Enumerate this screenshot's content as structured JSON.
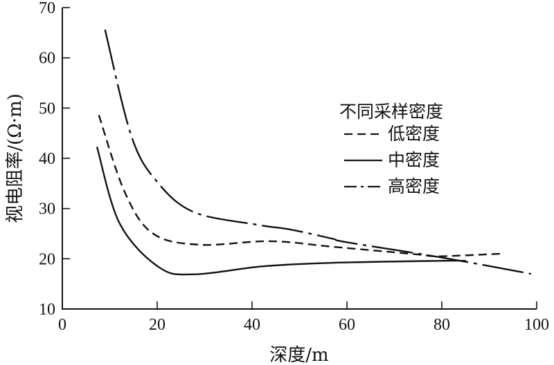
{
  "chart_data": {
    "type": "line",
    "title": "",
    "xlabel": "深度/m",
    "ylabel": "视电阻率/(Ω·m)",
    "xlim": [
      0,
      100
    ],
    "ylim": [
      10,
      70
    ],
    "xticks": [
      0,
      20,
      40,
      60,
      80,
      100
    ],
    "yticks": [
      10,
      20,
      30,
      40,
      50,
      60,
      70
    ],
    "grid": false,
    "legend": {
      "title": "不同采样密度",
      "placement": "right-center"
    },
    "series": [
      {
        "name": "低密度",
        "style": "dashed",
        "x": [
          7.7,
          13.1,
          19.0,
          28.8,
          43.8,
          56.9,
          74.5,
          79.3,
          92.3
        ],
        "y": [
          48.6,
          33.4,
          25.1,
          22.8,
          23.5,
          22.4,
          20.9,
          20.5,
          21.0
        ]
      },
      {
        "name": "中密度",
        "style": "solid",
        "x": [
          7.3,
          12.1,
          20.4,
          27.7,
          42.3,
          56.9,
          80.3,
          85.1
        ],
        "y": [
          42.3,
          27.0,
          18.3,
          16.9,
          18.5,
          19.2,
          19.6,
          19.6
        ]
      },
      {
        "name": "高密度",
        "style": "dash-dot",
        "x": [
          9.0,
          14.6,
          20.0,
          27.7,
          40.9,
          48.2,
          56.9,
          59.9,
          80.3,
          98.8
        ],
        "y": [
          65.6,
          44.3,
          35.3,
          29.3,
          26.8,
          25.8,
          24.0,
          23.3,
          20.2,
          17.0
        ]
      }
    ]
  }
}
